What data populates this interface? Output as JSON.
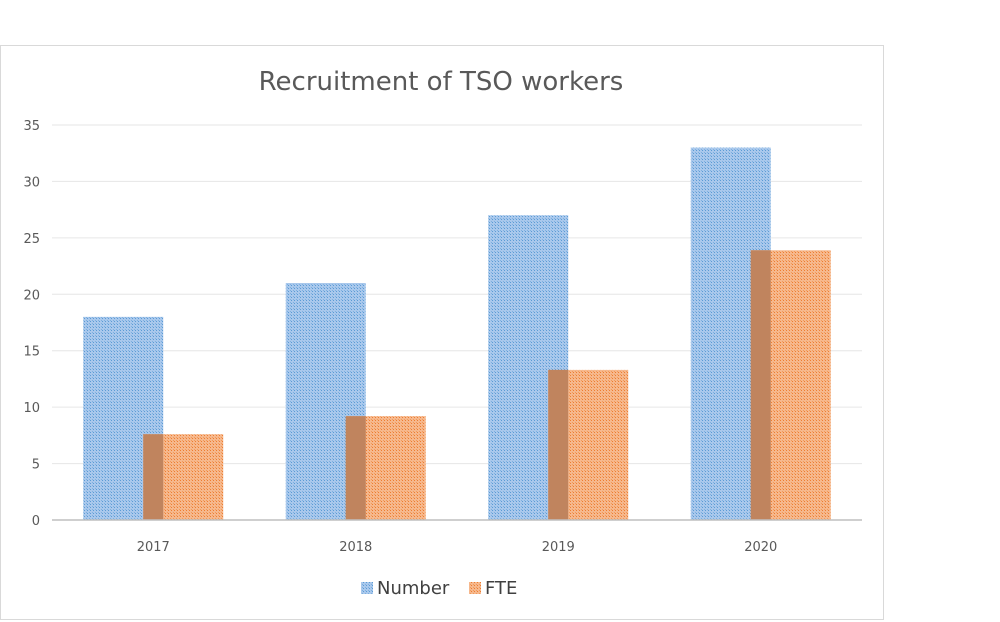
{
  "chart_data": {
    "type": "bar",
    "title": "Recruitment of TSO workers",
    "categories": [
      "2017",
      "2018",
      "2019",
      "2020"
    ],
    "series": [
      {
        "name": "Number",
        "values": [
          18,
          21,
          27,
          33
        ],
        "color": "#5b9bd5"
      },
      {
        "name": "FTE",
        "values": [
          7.6,
          9.2,
          13.3,
          23.9
        ],
        "color": "#ed7d31"
      }
    ],
    "y_ticks": [
      "0",
      "5",
      "10",
      "15",
      "20",
      "25",
      "30",
      "35"
    ],
    "ylim": [
      0,
      35
    ],
    "grid": true,
    "legend_position": "bottom"
  }
}
